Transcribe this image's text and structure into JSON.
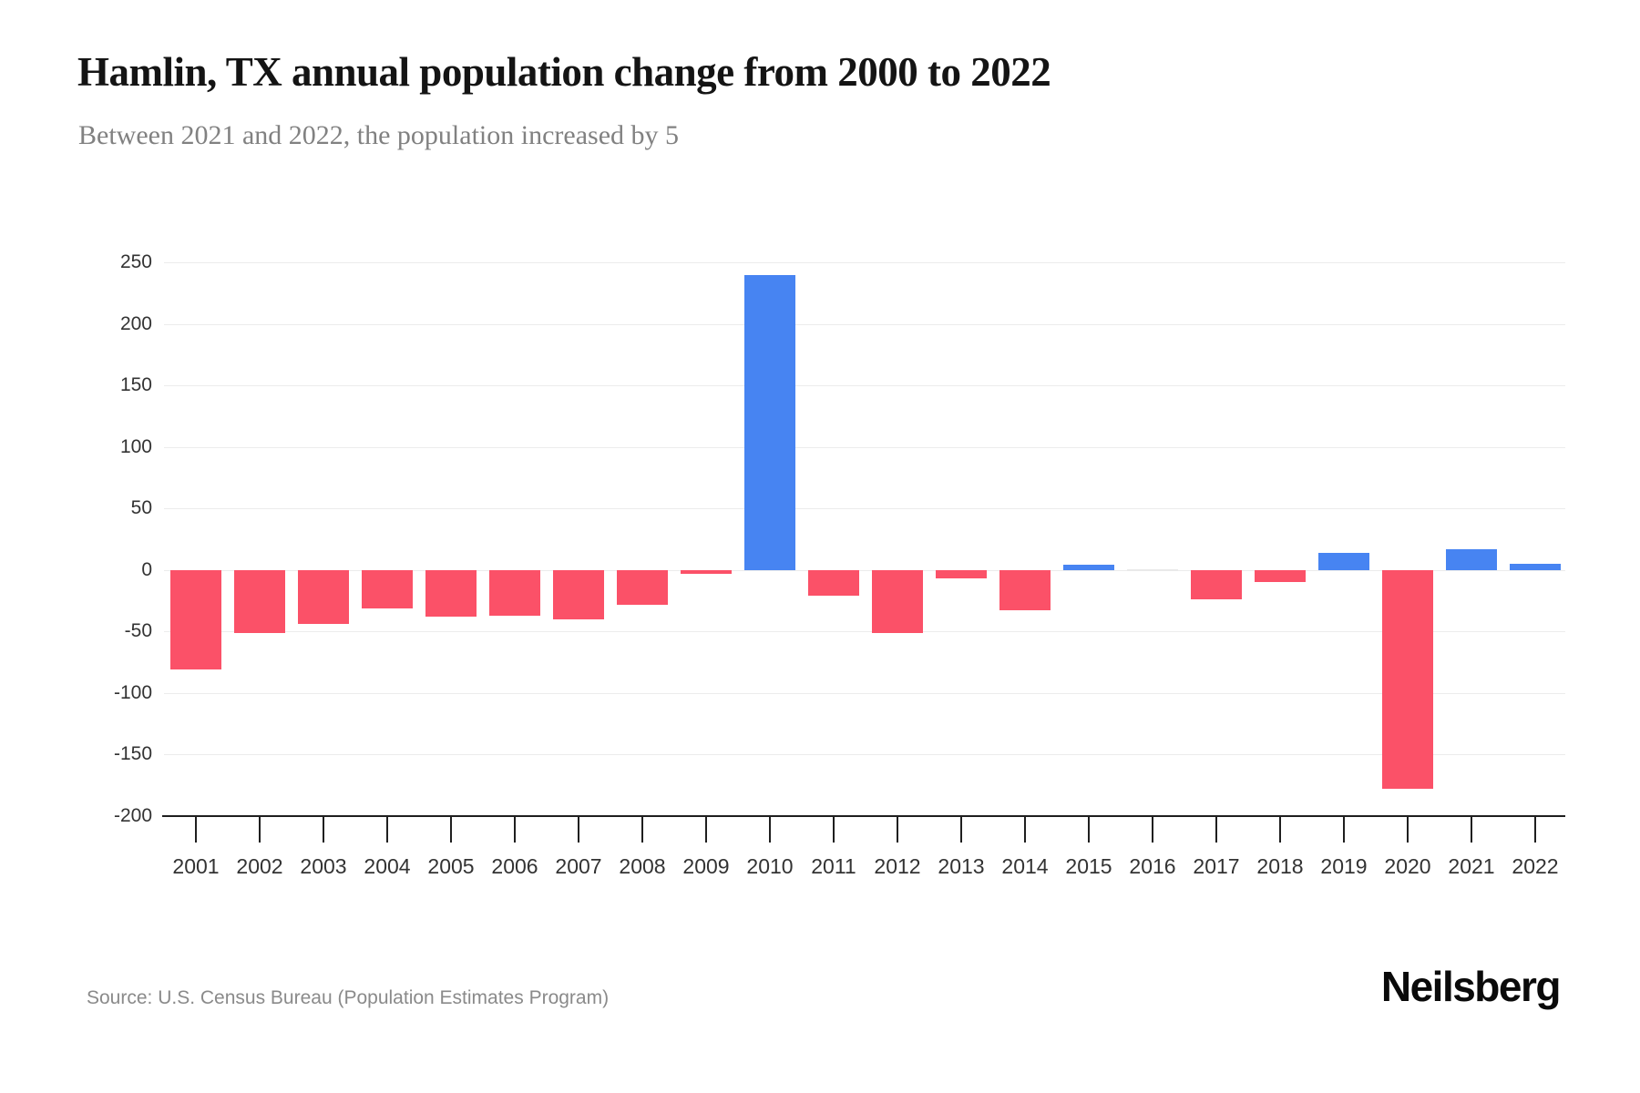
{
  "header": {
    "title": "Hamlin, TX annual population change from 2000 to 2022",
    "subtitle": "Between 2021 and 2022, the population increased by 5"
  },
  "footer": {
    "source": "Source: U.S. Census Bureau (Population Estimates Program)",
    "brand": "Neilsberg"
  },
  "chart_data": {
    "type": "bar",
    "title": "Hamlin, TX annual population change from 2000 to 2022",
    "subtitle": "Between 2021 and 2022, the population increased by 5",
    "categories": [
      "2001",
      "2002",
      "2003",
      "2004",
      "2005",
      "2006",
      "2007",
      "2008",
      "2009",
      "2010",
      "2011",
      "2012",
      "2013",
      "2014",
      "2015",
      "2016",
      "2017",
      "2018",
      "2019",
      "2020",
      "2021",
      "2022"
    ],
    "values": [
      -81,
      -51,
      -44,
      -31,
      -38,
      -37,
      -40,
      -28,
      -3,
      240,
      -21,
      -51,
      -7,
      -33,
      4,
      0,
      -24,
      -10,
      14,
      -178,
      17,
      5
    ],
    "xlabel": "",
    "ylabel": "",
    "ylim": [
      -200,
      250
    ],
    "yticks": [
      250,
      200,
      150,
      100,
      50,
      0,
      -50,
      -100,
      -150,
      -200
    ],
    "grid": true,
    "legend": false,
    "colors": {
      "positive": "#4784f2",
      "negative": "#fb5168",
      "zero": "#e9e9e9",
      "gridline": "#ececec",
      "axis": "#1f1f1f",
      "tick_label": "#333333"
    }
  }
}
